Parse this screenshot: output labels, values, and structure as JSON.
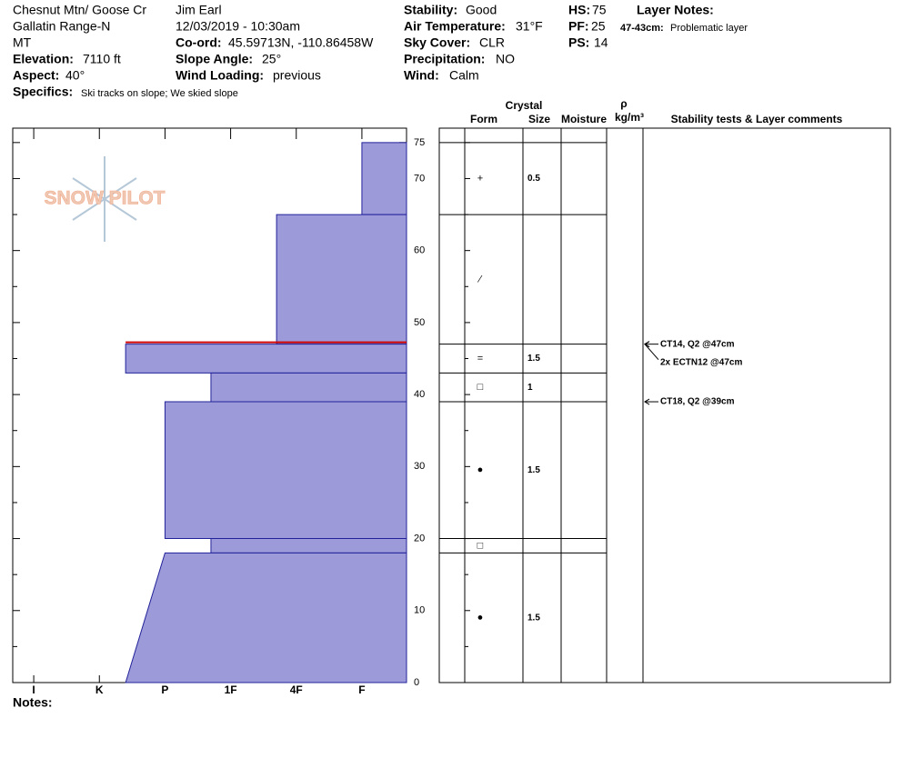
{
  "header": {
    "col1": [
      "Chesnut Mtn/ Goose Cr",
      "Gallatin Range-N",
      "MT"
    ],
    "elevation": {
      "label": "Elevation:",
      "value": "7110 ft"
    },
    "aspect": {
      "label": "Aspect:",
      "value": "40°"
    },
    "specifics": {
      "label": "Specifics:",
      "value": "Ski tracks on slope; We skied slope"
    },
    "observer": "Jim Earl",
    "datetime": "12/03/2019 - 10:30am",
    "coord": {
      "label": "Co-ord:",
      "value": "45.59713N, -110.86458W"
    },
    "slope": {
      "label": "Slope Angle:",
      "value": "25°"
    },
    "wind_loading": {
      "label": "Wind Loading:",
      "value": "previous"
    },
    "stability": {
      "label": "Stability:",
      "value": "Good"
    },
    "air_temp": {
      "label": "Air Temperature:",
      "value": "31°F"
    },
    "sky": {
      "label": "Sky Cover:",
      "value": "CLR"
    },
    "precip": {
      "label": "Precipitation:",
      "value": "NO"
    },
    "wind": {
      "label": "Wind:",
      "value": "Calm"
    },
    "hs": {
      "label": "HS:",
      "value": "75"
    },
    "pf": {
      "label": "PF:",
      "value": "25"
    },
    "ps": {
      "label": "PS:",
      "value": "14"
    },
    "layer_notes": {
      "label": "Layer Notes:",
      "range": "47-43cm:",
      "text": "Problematic layer"
    }
  },
  "logo": "SNOW PILOT",
  "notes_label": "Notes:",
  "table_headers": {
    "crystal": "Crystal",
    "form": "Form",
    "size": "Size",
    "moisture": "Moisture",
    "rho": "ρ",
    "density": "kg/m³",
    "comments": "Stability tests & Layer comments"
  },
  "chart_data": {
    "type": "snow-profile",
    "ylim": [
      0,
      77
    ],
    "yticks": [
      0,
      10,
      20,
      30,
      40,
      50,
      60,
      70,
      75
    ],
    "yticks_minor": [
      5,
      15,
      25,
      35,
      45,
      55,
      65
    ],
    "xlim": [
      0.68,
      6.68
    ],
    "xticks": [
      {
        "value": 1,
        "label": "I"
      },
      {
        "value": 2,
        "label": "K"
      },
      {
        "value": 3,
        "label": "P"
      },
      {
        "value": 4,
        "label": "1F"
      },
      {
        "value": 5,
        "label": "4F"
      },
      {
        "value": 6,
        "label": "F"
      }
    ],
    "bar_color": "#9c9ad8",
    "edge_color": "#22229a",
    "flag_color": "#cc0000",
    "layers": [
      {
        "top": 75,
        "bottom": 65,
        "hardness": [
          6,
          6
        ],
        "form": "+",
        "size": 0.5
      },
      {
        "top": 65,
        "bottom": 47,
        "hardness": [
          4.7,
          4.7
        ],
        "form": "⁄",
        "size": null
      },
      {
        "top": 47,
        "bottom": 43,
        "hardness": [
          2.4,
          2.4
        ],
        "form": "=",
        "size": 1.5,
        "flagged": true
      },
      {
        "top": 43,
        "bottom": 39,
        "hardness": [
          3.7,
          3.7
        ],
        "form": "□",
        "size": 1
      },
      {
        "top": 39,
        "bottom": 20,
        "hardness": [
          3,
          3
        ],
        "form": "●",
        "size": 1.5
      },
      {
        "top": 20,
        "bottom": 18,
        "hardness": [
          3.7,
          3.7
        ],
        "form": "□",
        "size": null
      },
      {
        "top": 18,
        "bottom": 0,
        "hardness": [
          3,
          2.4
        ],
        "form": "●",
        "size": 1.5
      }
    ],
    "tests": [
      {
        "depth": 47,
        "text": "CT14, Q2 @47cm"
      },
      {
        "depth": 47,
        "text": "2x ECTN12 @47cm"
      },
      {
        "depth": 39,
        "text": "CT18, Q2 @39cm"
      }
    ]
  }
}
